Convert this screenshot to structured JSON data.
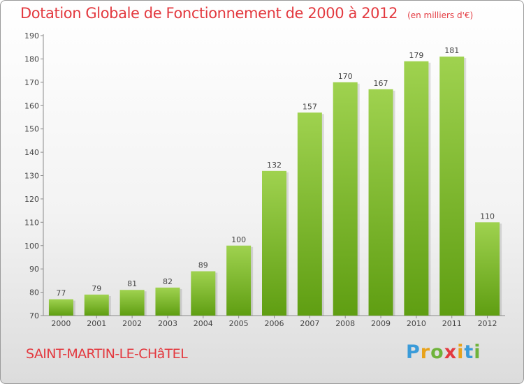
{
  "header": {
    "title": "Dotation Globale de Fonctionnement de 2000 à 2012",
    "unit": "(en milliers d'€)"
  },
  "footer": {
    "commune": "SAINT-MARTIN-LE-CHâTEL",
    "logo": [
      "P",
      "r",
      "o",
      "x",
      "i",
      "t",
      "i"
    ]
  },
  "colors": {
    "bar_top": "#9fd24f",
    "bar_bottom": "#5f9e12",
    "title": "#e3393f"
  },
  "chart_data": {
    "type": "bar",
    "title": "Dotation Globale de Fonctionnement de 2000 à 2012",
    "subtitle": "(en milliers d'€)",
    "xlabel": "",
    "ylabel": "",
    "categories": [
      "2000",
      "2001",
      "2002",
      "2003",
      "2004",
      "2005",
      "2006",
      "2007",
      "2008",
      "2009",
      "2010",
      "2011",
      "2012"
    ],
    "values": [
      77,
      79,
      81,
      82,
      89,
      100,
      132,
      157,
      170,
      167,
      179,
      181,
      110
    ],
    "ylim": [
      70,
      190
    ],
    "yticks": [
      70,
      80,
      90,
      100,
      110,
      120,
      130,
      140,
      150,
      160,
      170,
      180,
      190
    ],
    "grid": false,
    "legend": "none"
  }
}
